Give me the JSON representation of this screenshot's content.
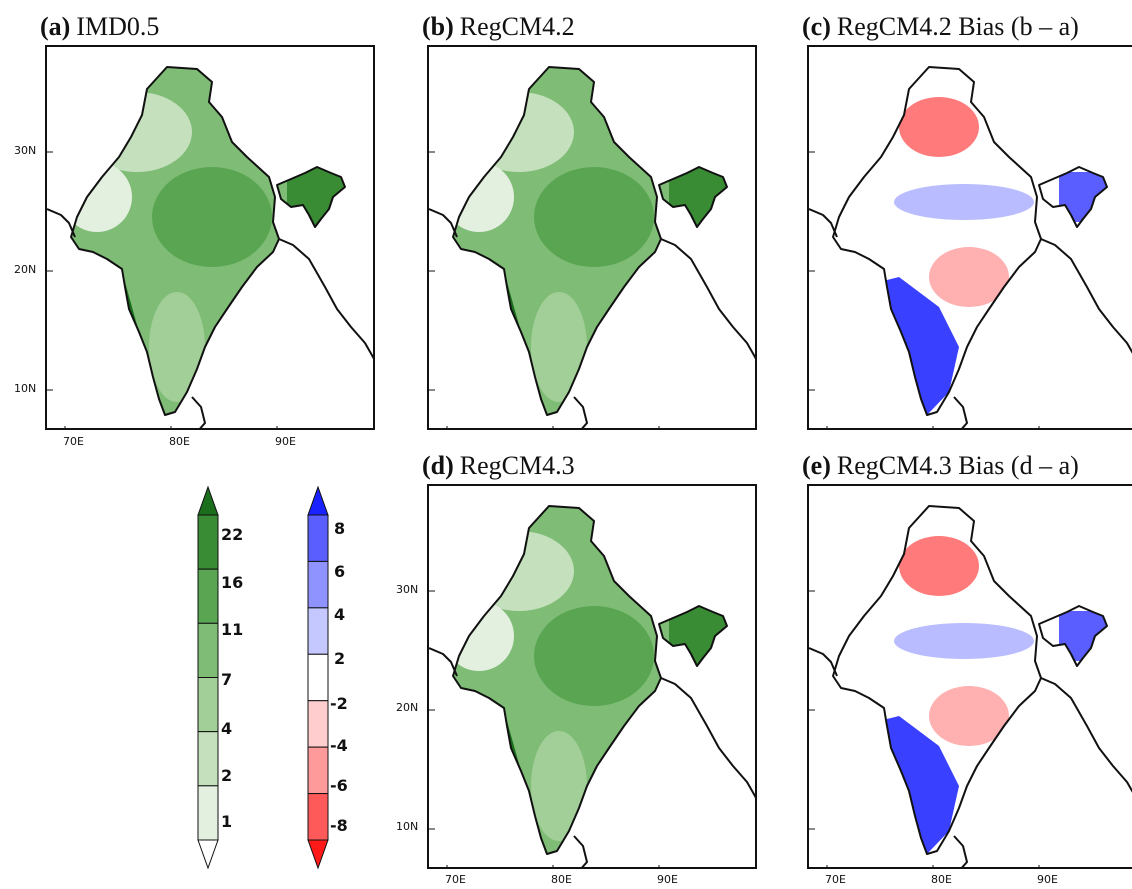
{
  "panels": {
    "a": {
      "letter": "(a)",
      "name": "IMD0.5"
    },
    "b": {
      "letter": "(b)",
      "name": "RegCM4.2"
    },
    "c": {
      "letter": "(c)",
      "name": "RegCM4.2 Bias (b – a)"
    },
    "d": {
      "letter": "(d)",
      "name": "RegCM4.3"
    },
    "e": {
      "letter": "(e)",
      "name": "RegCM4.3 Bias (d – a)"
    }
  },
  "axes": {
    "lon_ticks": [
      "70E",
      "80E",
      "90E"
    ],
    "lat_ticks": [
      "30N",
      "20N",
      "10N"
    ]
  },
  "colorbars": {
    "rainfall": {
      "levels": [
        "1",
        "2",
        "4",
        "7",
        "11",
        "16",
        "22"
      ],
      "colors": [
        "#ffffff",
        "#e3f0df",
        "#c4e0bc",
        "#a2cf98",
        "#7fbc76",
        "#5aa552",
        "#3a8c34",
        "#1a6e1c"
      ]
    },
    "bias": {
      "levels": [
        "-8",
        "-6",
        "-4",
        "-2",
        "2",
        "4",
        "6",
        "8"
      ],
      "colors": [
        "#ff1a1a",
        "#ff5a5a",
        "#ff9a9a",
        "#ffcdcd",
        "#ffffff",
        "#c5c8ff",
        "#8f93ff",
        "#5a5eff",
        "#1a22ff"
      ]
    }
  }
}
